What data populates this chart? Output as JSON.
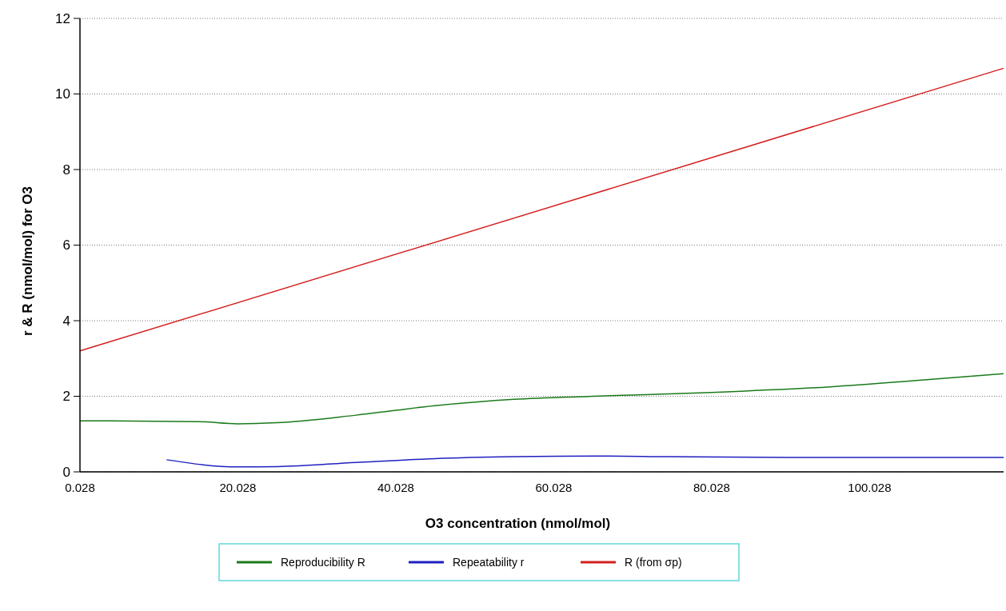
{
  "chart_data": {
    "type": "line",
    "xlabel": "O3 concentration (nmol/mol)",
    "ylabel": "r & R (nmol/mol) for O3",
    "xlim": [
      0.028,
      117
    ],
    "xticks": [
      0.028,
      20.028,
      40.028,
      60.028,
      80.028,
      100.028
    ],
    "ylim": [
      0,
      12
    ],
    "yticks": [
      0,
      2,
      4,
      6,
      8,
      10,
      12
    ],
    "grid": "y",
    "legend": "bottom",
    "line_style": "solid",
    "marker": "none",
    "series": [
      {
        "name": "Reproducibility R",
        "color": "#1a7a1a",
        "x": [
          0.028,
          15,
          20,
          25,
          35,
          45,
          55,
          65,
          80,
          95,
          105,
          117
        ],
        "values": [
          1.35,
          1.33,
          1.27,
          1.3,
          1.5,
          1.75,
          1.92,
          2.0,
          2.1,
          2.25,
          2.4,
          2.6
        ]
      },
      {
        "name": "Repeatability r",
        "color": "#2020c0",
        "x": [
          11,
          20,
          25,
          35,
          45,
          55,
          65,
          75,
          90,
          117
        ],
        "values": [
          0.32,
          0.13,
          0.14,
          0.25,
          0.35,
          0.4,
          0.42,
          0.4,
          0.38,
          0.38
        ]
      },
      {
        "name": "R (from σp)",
        "color": "#d42020",
        "x": [
          0.028,
          117
        ],
        "values": [
          3.2,
          10.68
        ]
      }
    ]
  }
}
